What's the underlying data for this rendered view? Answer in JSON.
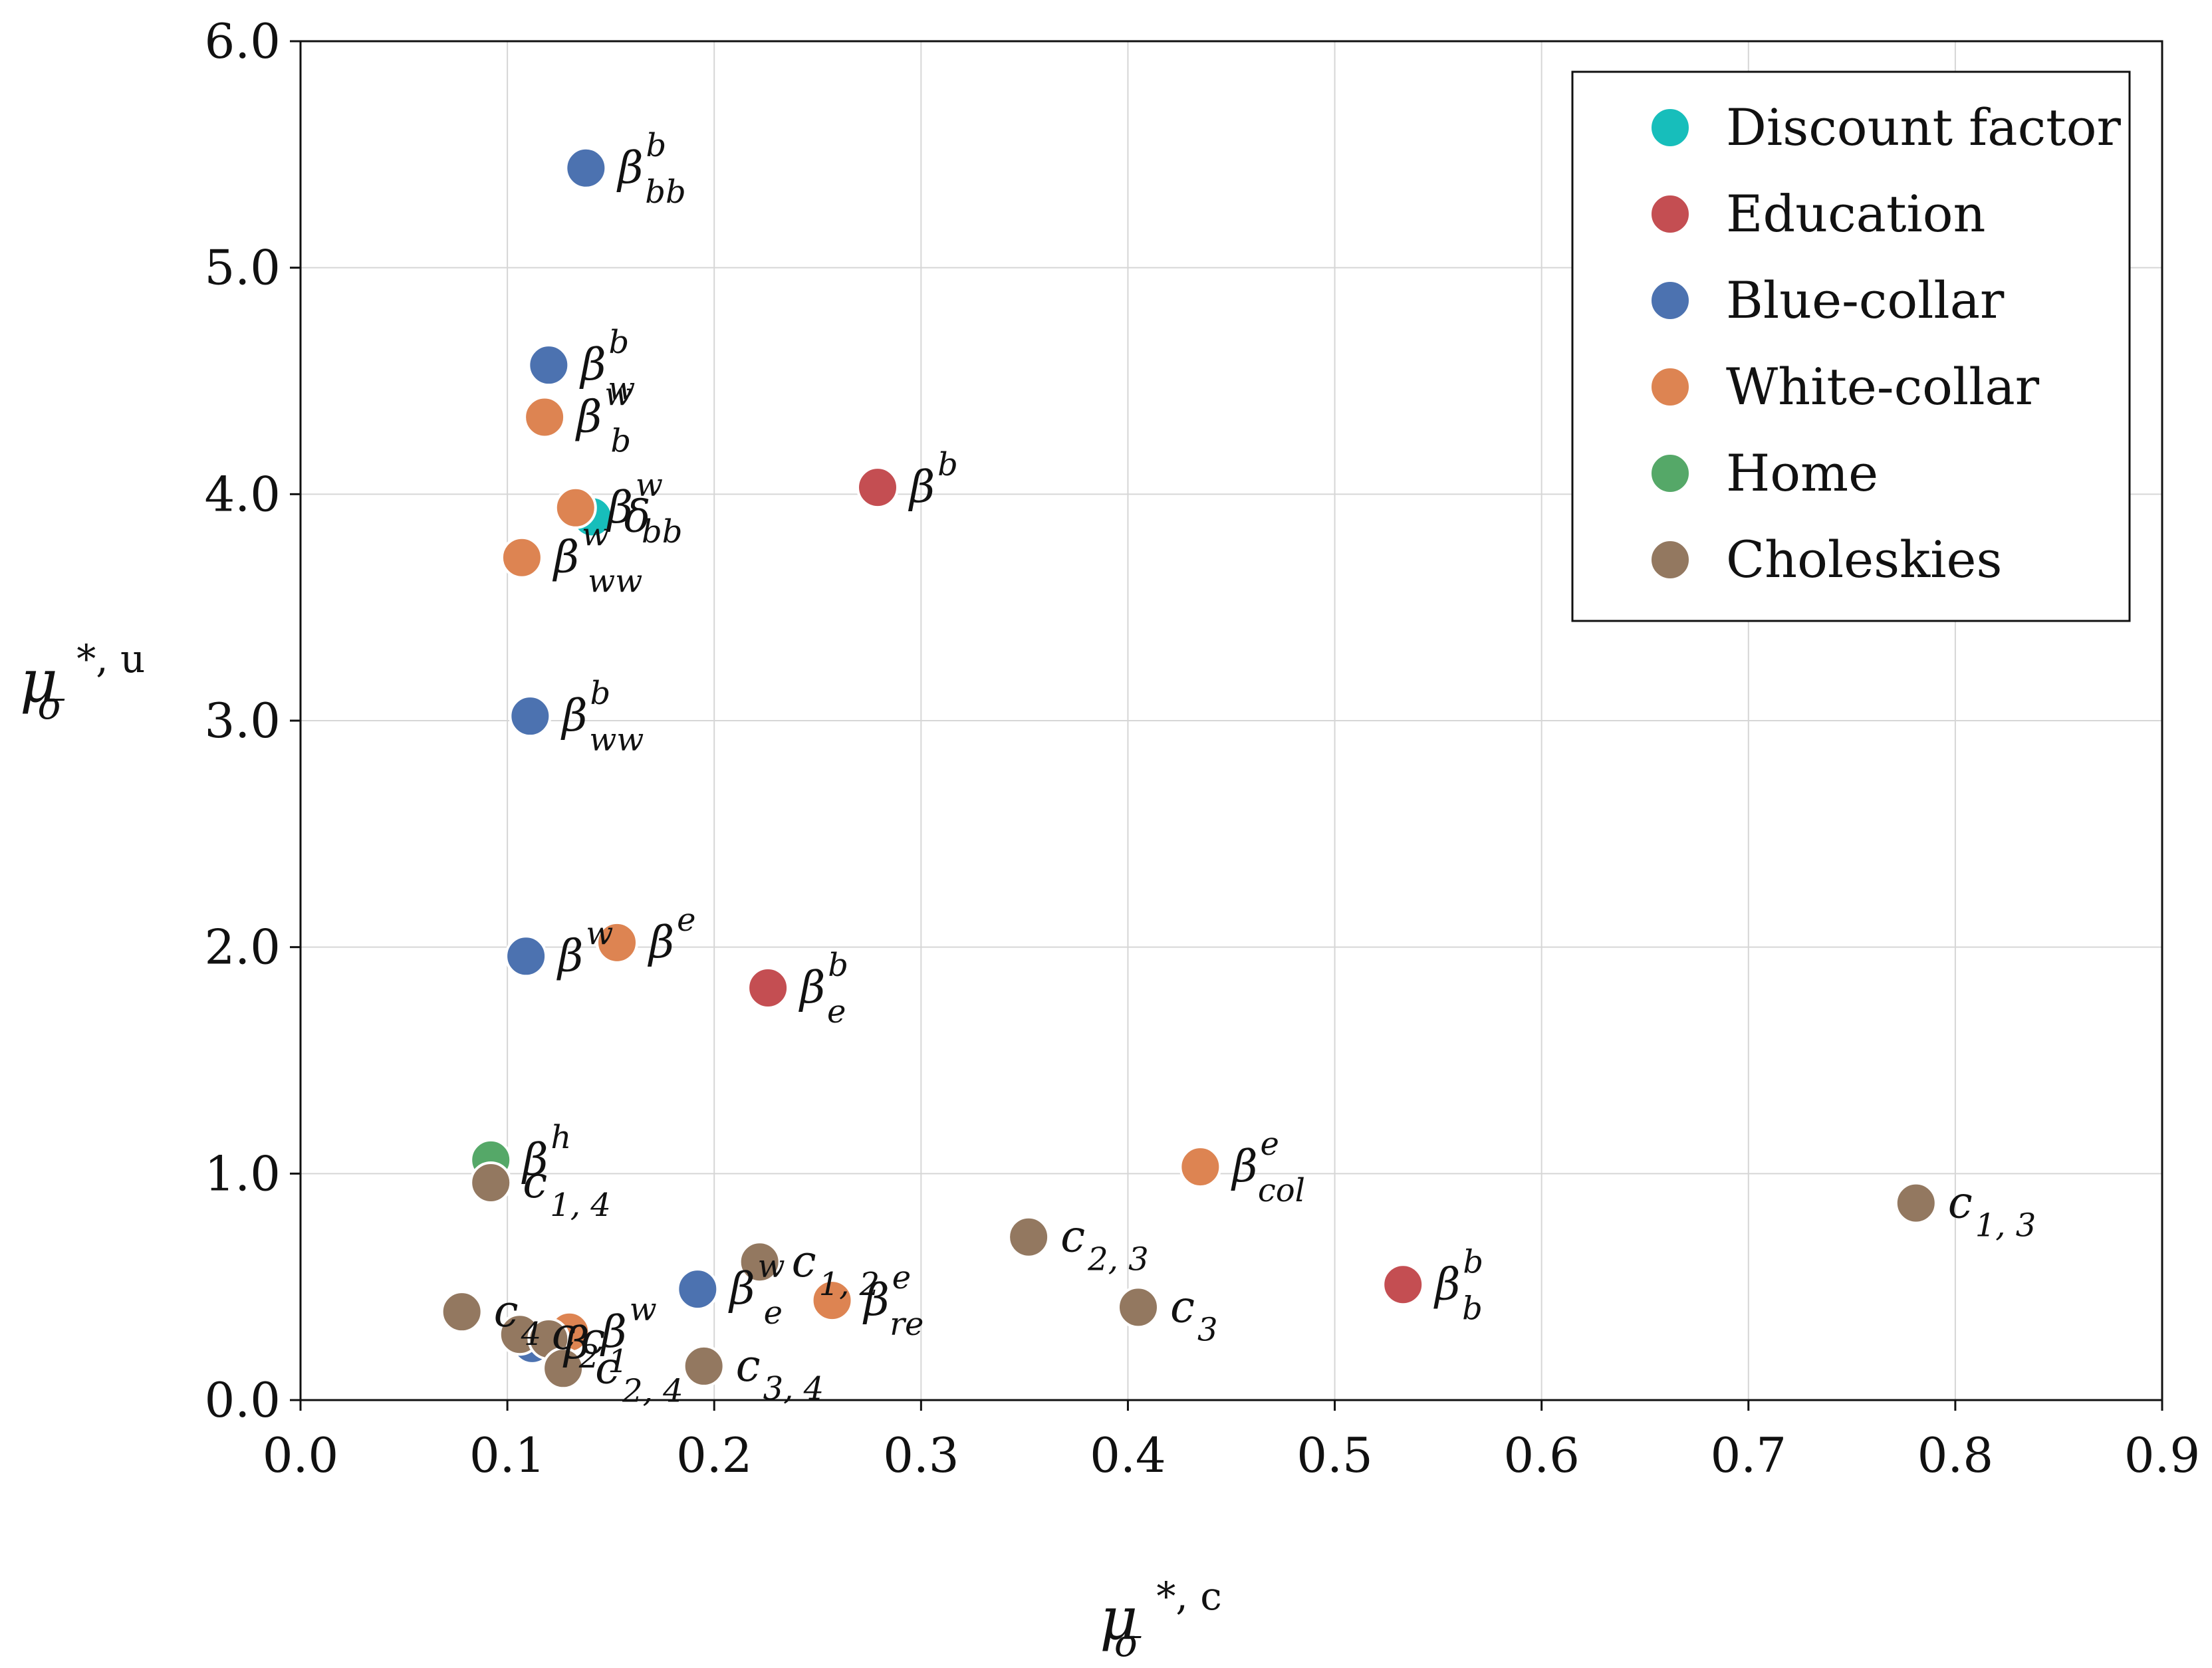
{
  "chart_data": {
    "type": "scatter",
    "xlabel": {
      "base": "μ",
      "sub": "σ",
      "sup": "*, c"
    },
    "ylabel": {
      "base": "μ",
      "sub": "σ",
      "sup": "*, u"
    },
    "xlim": [
      0.0,
      0.9
    ],
    "ylim": [
      0.0,
      6.0
    ],
    "xticks": [
      "0.0",
      "0.1",
      "0.2",
      "0.3",
      "0.4",
      "0.5",
      "0.6",
      "0.7",
      "0.8",
      "0.9"
    ],
    "yticks": [
      "0.0",
      "1.0",
      "2.0",
      "3.0",
      "4.0",
      "5.0",
      "6.0"
    ],
    "grid": true,
    "legend_position": "top-right",
    "series": [
      {
        "name": "Discount factor",
        "color": "#17bebb",
        "points": [
          {
            "x": 0.141,
            "y": 3.9,
            "base": "δ",
            "sub": "",
            "sup": ""
          }
        ]
      },
      {
        "name": "Education",
        "color": "#c44e52",
        "points": [
          {
            "x": 0.279,
            "y": 4.03,
            "base": "β",
            "sub": "",
            "sup": "b"
          },
          {
            "x": 0.226,
            "y": 1.82,
            "base": "β",
            "sub": "e",
            "sup": "b"
          },
          {
            "x": 0.533,
            "y": 0.51,
            "base": "β",
            "sub": "b",
            "sup": "b"
          }
        ]
      },
      {
        "name": "Blue-collar",
        "color": "#4c72b0",
        "points": [
          {
            "x": 0.138,
            "y": 5.44,
            "base": "β",
            "sub": "bb",
            "sup": "b"
          },
          {
            "x": 0.12,
            "y": 4.57,
            "base": "β",
            "sub": "w",
            "sup": "b"
          },
          {
            "x": 0.111,
            "y": 3.02,
            "base": "β",
            "sub": "ww",
            "sup": "b"
          },
          {
            "x": 0.109,
            "y": 1.96,
            "base": "β",
            "sub": "",
            "sup": "w"
          },
          {
            "x": 0.192,
            "y": 0.49,
            "base": "β",
            "sub": "e",
            "sup": "w"
          },
          {
            "x": 0.112,
            "y": 0.25,
            "base": "β",
            "sub": "",
            "sup": ""
          }
        ]
      },
      {
        "name": "White-collar",
        "color": "#dd8452",
        "points": [
          {
            "x": 0.118,
            "y": 4.34,
            "base": "β",
            "sub": "b",
            "sup": "w"
          },
          {
            "x": 0.133,
            "y": 3.94,
            "base": "β",
            "sub": "bb",
            "sup": "w"
          },
          {
            "x": 0.107,
            "y": 3.72,
            "base": "β",
            "sub": "ww",
            "sup": "w"
          },
          {
            "x": 0.153,
            "y": 2.02,
            "base": "β",
            "sub": "",
            "sup": "e"
          },
          {
            "x": 0.435,
            "y": 1.03,
            "base": "β",
            "sub": "col",
            "sup": "e"
          },
          {
            "x": 0.257,
            "y": 0.44,
            "base": "β",
            "sub": "re",
            "sup": "e"
          },
          {
            "x": 0.13,
            "y": 0.3,
            "base": "β",
            "sub": "",
            "sup": "w"
          }
        ]
      },
      {
        "name": "Home",
        "color": "#55a868",
        "points": [
          {
            "x": 0.092,
            "y": 1.06,
            "base": "β",
            "sub": "",
            "sup": "h"
          }
        ]
      },
      {
        "name": "Choleskies",
        "color": "#937860",
        "points": [
          {
            "x": 0.092,
            "y": 0.96,
            "base": "c",
            "sub": "1, 4",
            "sup": ""
          },
          {
            "x": 0.781,
            "y": 0.87,
            "base": "c",
            "sub": "1, 3",
            "sup": ""
          },
          {
            "x": 0.352,
            "y": 0.72,
            "base": "c",
            "sub": "2, 3",
            "sup": ""
          },
          {
            "x": 0.222,
            "y": 0.61,
            "base": "c",
            "sub": "1, 2",
            "sup": ""
          },
          {
            "x": 0.405,
            "y": 0.41,
            "base": "c",
            "sub": "3",
            "sup": ""
          },
          {
            "x": 0.078,
            "y": 0.39,
            "base": "c",
            "sub": "4",
            "sup": ""
          },
          {
            "x": 0.106,
            "y": 0.29,
            "base": "c",
            "sub": "2",
            "sup": ""
          },
          {
            "x": 0.12,
            "y": 0.27,
            "base": "c",
            "sub": "1",
            "sup": ""
          },
          {
            "x": 0.127,
            "y": 0.14,
            "base": "c",
            "sub": "2, 4",
            "sup": ""
          },
          {
            "x": 0.195,
            "y": 0.15,
            "base": "c",
            "sub": "3, 4",
            "sup": ""
          }
        ]
      }
    ]
  }
}
